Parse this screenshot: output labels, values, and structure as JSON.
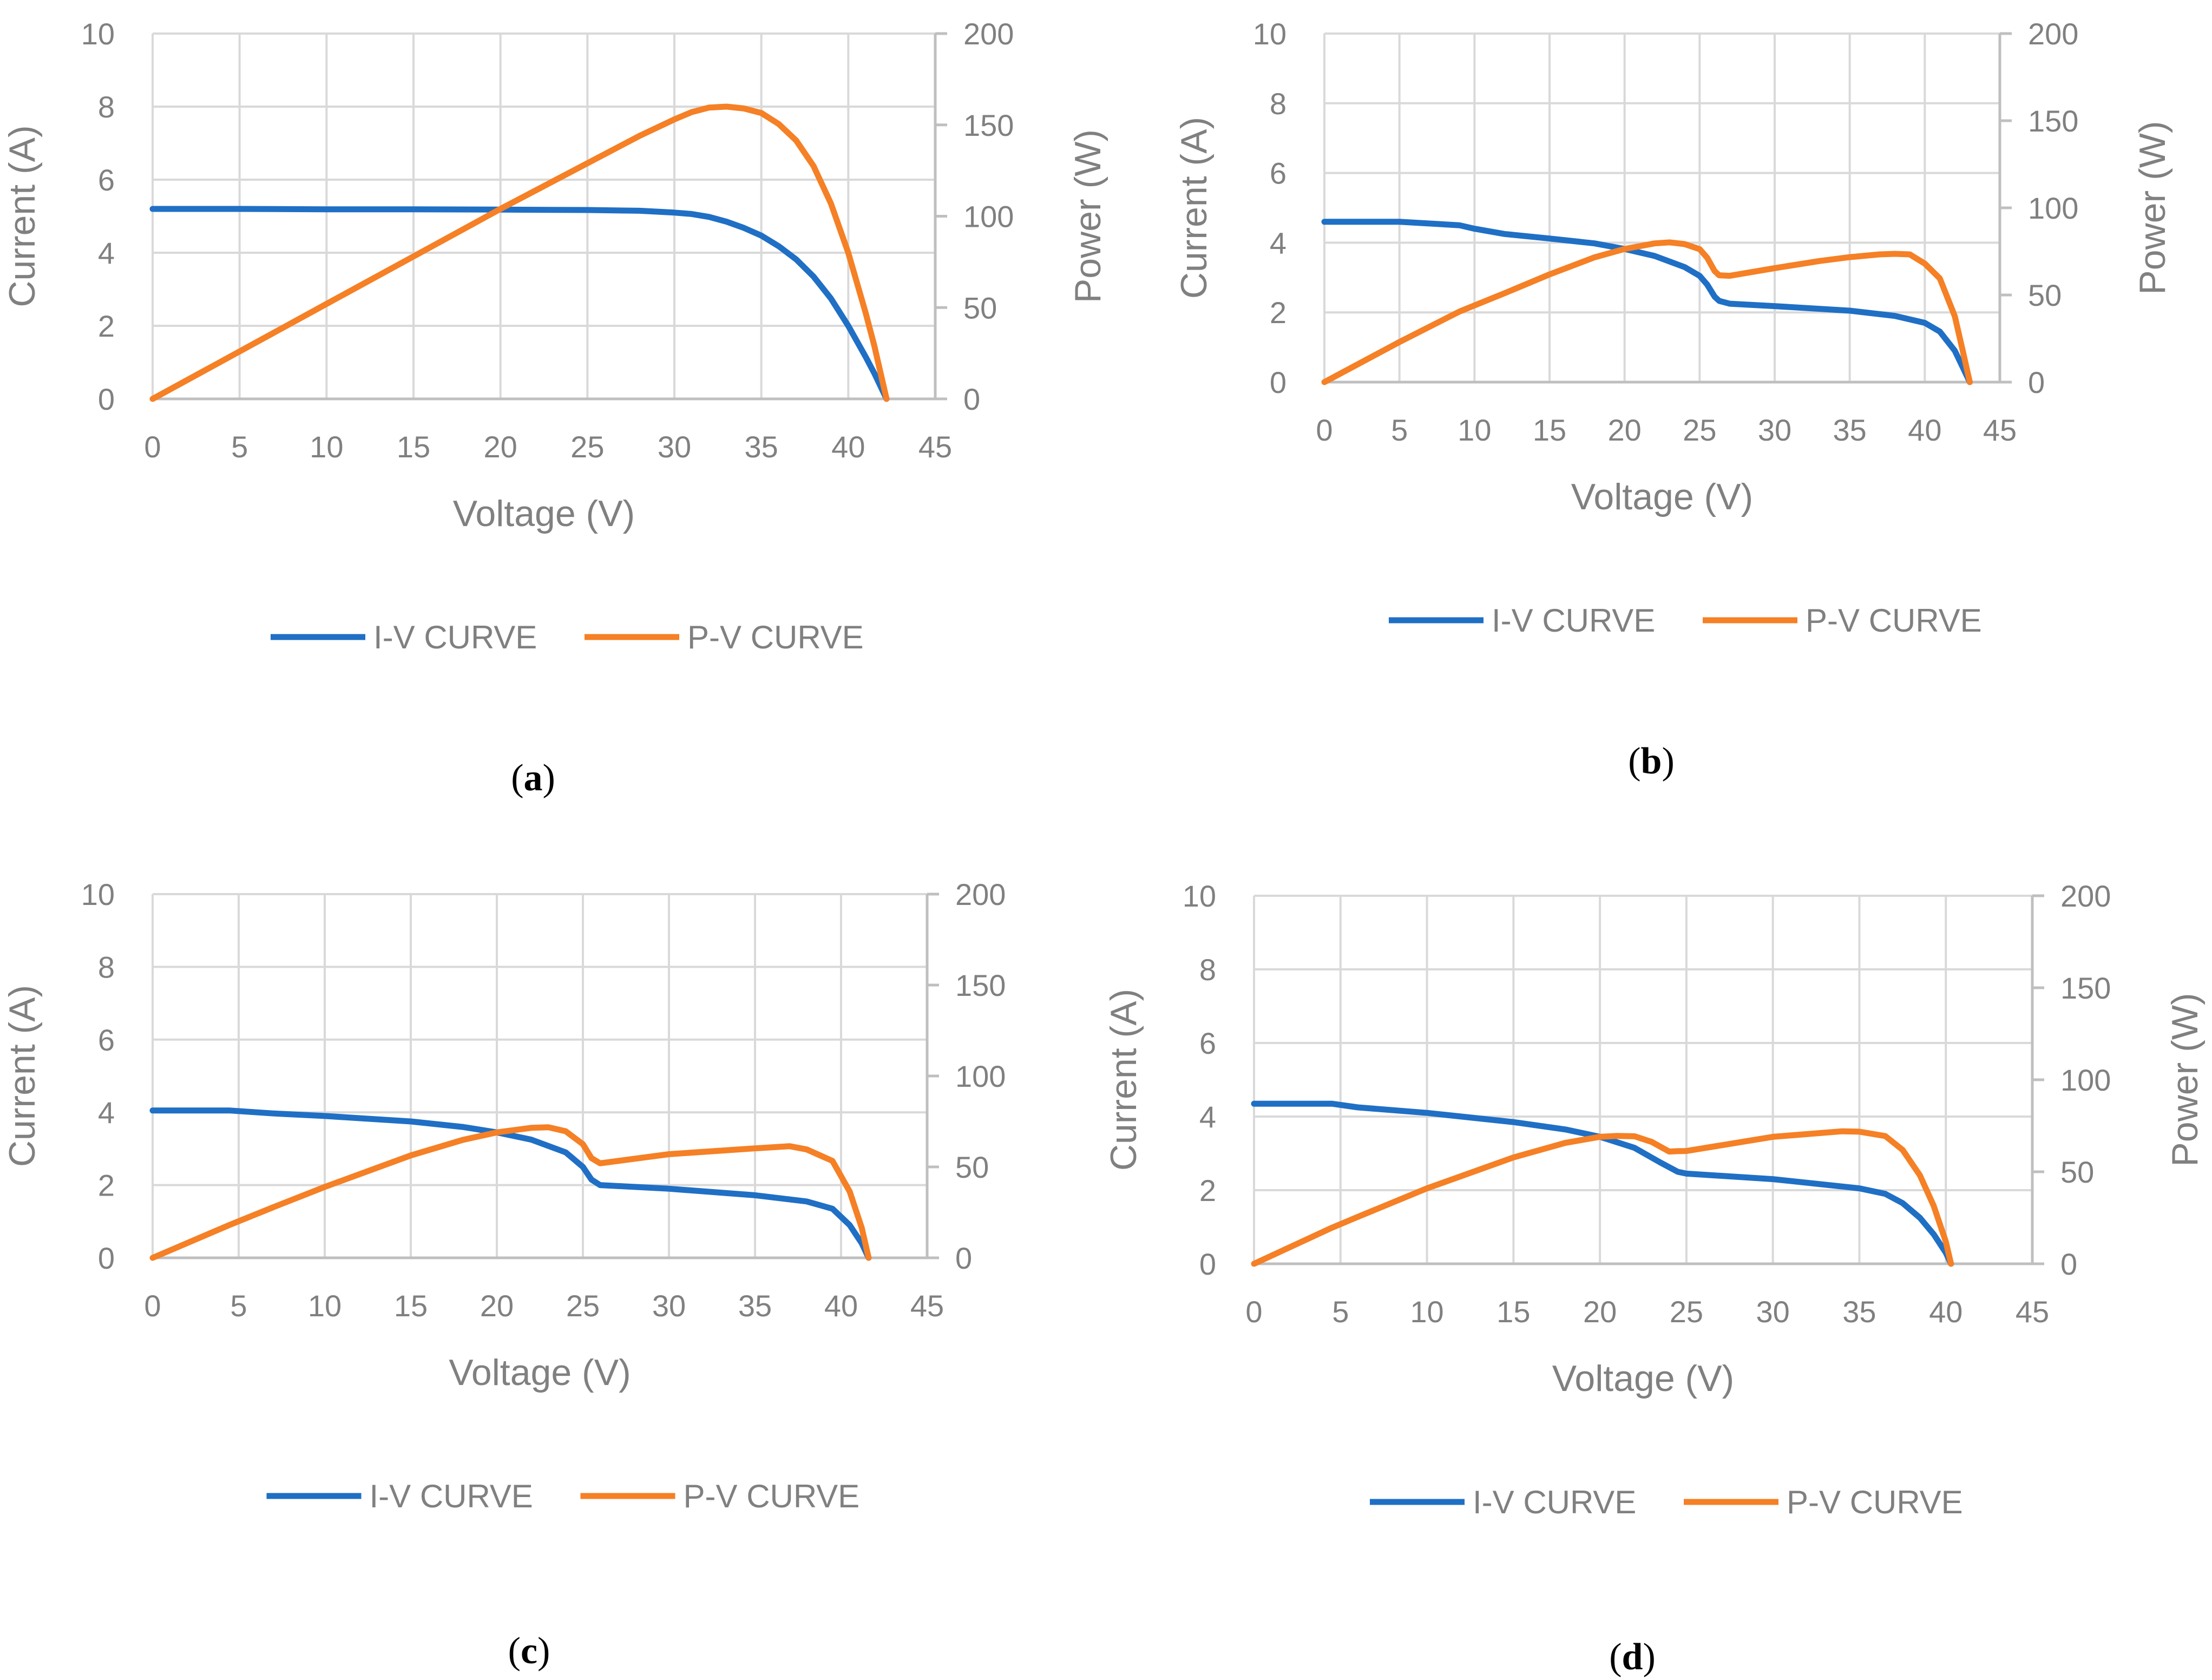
{
  "colors": {
    "iv": "#1F6FC5",
    "pv": "#F58025",
    "grid": "#D9D9D9",
    "axis": "#BFBFBF",
    "text": "#808080"
  },
  "chart_data": [
    {
      "type": "line",
      "caption": "a",
      "xlabel": "Voltage (V)",
      "ylabel": "Current (A)",
      "y2label": "Power (W)",
      "xlim": [
        0,
        45
      ],
      "ylim": [
        0,
        10
      ],
      "y2lim": [
        0,
        200
      ],
      "xticks": [
        0,
        5,
        10,
        15,
        20,
        25,
        30,
        35,
        40,
        45
      ],
      "yticks": [
        0,
        2,
        4,
        6,
        8,
        10
      ],
      "y2ticks": [
        0,
        50,
        100,
        150,
        200
      ],
      "grid": true,
      "legend": "bottom",
      "series": [
        {
          "name": "I-V CURVE",
          "axis": "left",
          "x": [
            0,
            5,
            10,
            15,
            20,
            25,
            28,
            30,
            31,
            32,
            33,
            34,
            35,
            36,
            37,
            38,
            39,
            40,
            41,
            41.5,
            42.2
          ],
          "y": [
            5.2,
            5.2,
            5.19,
            5.19,
            5.18,
            5.17,
            5.15,
            5.1,
            5.06,
            4.98,
            4.85,
            4.68,
            4.47,
            4.18,
            3.82,
            3.35,
            2.75,
            2.0,
            1.15,
            0.7,
            0
          ]
        },
        {
          "name": "P-V CURVE",
          "axis": "right",
          "x": [
            0,
            5,
            10,
            15,
            20,
            25,
            28,
            30,
            31,
            32,
            33,
            34,
            35,
            36,
            37,
            38,
            39,
            40,
            41,
            41.5,
            42.2
          ],
          "y": [
            0,
            26,
            52,
            78,
            104,
            129,
            144,
            153,
            157,
            159.5,
            160,
            159,
            156.5,
            150.5,
            141.5,
            127.5,
            107,
            80,
            47,
            29,
            0
          ]
        }
      ]
    },
    {
      "type": "line",
      "caption": "b",
      "xlabel": "Voltage (V)",
      "ylabel": "Current (A)",
      "y2label": "Power (W)",
      "xlim": [
        0,
        45
      ],
      "ylim": [
        0,
        10
      ],
      "y2lim": [
        0,
        200
      ],
      "xticks": [
        0,
        5,
        10,
        15,
        20,
        25,
        30,
        35,
        40,
        45
      ],
      "yticks": [
        0,
        2,
        4,
        6,
        8,
        10
      ],
      "y2ticks": [
        0,
        50,
        100,
        150,
        200
      ],
      "grid": true,
      "legend": "bottom",
      "series": [
        {
          "name": "I-V CURVE",
          "axis": "left",
          "x": [
            0,
            5,
            9,
            10,
            12,
            15,
            18,
            20,
            22,
            24,
            25,
            25.5,
            26,
            26.3,
            27,
            30,
            35,
            38,
            40,
            41,
            42,
            42.5,
            43
          ],
          "y": [
            4.6,
            4.6,
            4.5,
            4.4,
            4.25,
            4.12,
            3.98,
            3.82,
            3.62,
            3.3,
            3.05,
            2.8,
            2.45,
            2.33,
            2.25,
            2.18,
            2.05,
            1.9,
            1.7,
            1.45,
            0.9,
            0.45,
            0
          ]
        },
        {
          "name": "P-V CURVE",
          "axis": "right",
          "x": [
            0,
            5,
            9,
            10,
            12,
            15,
            18,
            20,
            22,
            23,
            24,
            25,
            25.5,
            26,
            26.3,
            27,
            30,
            33,
            35,
            37,
            38,
            39,
            40,
            41,
            42,
            42.5,
            43
          ],
          "y": [
            0,
            23,
            40.5,
            44,
            51,
            61.8,
            71.6,
            76.4,
            79.6,
            80.2,
            79.2,
            76.3,
            71.4,
            63.7,
            61.3,
            61,
            65.4,
            69.5,
            71.7,
            73.3,
            73.6,
            73.3,
            68,
            59.5,
            37.8,
            19,
            0
          ]
        }
      ]
    },
    {
      "type": "line",
      "caption": "c",
      "xlabel": "Voltage (V)",
      "ylabel": "Current (A)",
      "y2label": "",
      "xlim": [
        0,
        45
      ],
      "ylim": [
        0,
        10
      ],
      "y2lim": [
        0,
        200
      ],
      "xticks": [
        0,
        5,
        10,
        15,
        20,
        25,
        30,
        35,
        40,
        45
      ],
      "yticks": [
        0,
        2,
        4,
        6,
        8,
        10
      ],
      "y2ticks": [
        0,
        50,
        100,
        150,
        200
      ],
      "grid": true,
      "legend": "bottom",
      "series": [
        {
          "name": "I-V CURVE",
          "axis": "left",
          "x": [
            0,
            4.5,
            7,
            10,
            15,
            18,
            20,
            22,
            24,
            25,
            25.5,
            26,
            30,
            35,
            38,
            39.5,
            40.5,
            41.2,
            41.6
          ],
          "y": [
            4.05,
            4.05,
            3.97,
            3.9,
            3.75,
            3.6,
            3.45,
            3.25,
            2.9,
            2.5,
            2.15,
            2.0,
            1.9,
            1.72,
            1.55,
            1.35,
            0.9,
            0.4,
            0
          ]
        },
        {
          "name": "P-V CURVE",
          "axis": "right",
          "x": [
            0,
            4.5,
            7,
            10,
            15,
            18,
            20,
            22,
            23,
            24,
            25,
            25.5,
            26,
            30,
            35,
            37,
            38,
            39.5,
            40.5,
            41.2,
            41.6
          ],
          "y": [
            0,
            18.2,
            27.8,
            39,
            56.3,
            64.8,
            69,
            71.5,
            71.8,
            69.6,
            62.5,
            54.8,
            52,
            57,
            60.2,
            61.4,
            59.6,
            53.3,
            36.5,
            16.5,
            0
          ]
        }
      ]
    },
    {
      "type": "line",
      "caption": "d",
      "xlabel": "Voltage (V)",
      "ylabel": "Current (A)",
      "y2label": "Power (W)",
      "xlim": [
        0,
        45
      ],
      "ylim": [
        0,
        10
      ],
      "y2lim": [
        0,
        200
      ],
      "xticks": [
        0,
        5,
        10,
        15,
        20,
        25,
        30,
        35,
        40,
        45
      ],
      "yticks": [
        0,
        2,
        4,
        6,
        8,
        10
      ],
      "y2ticks": [
        0,
        50,
        100,
        150,
        200
      ],
      "grid": true,
      "legend": "bottom",
      "series": [
        {
          "name": "I-V CURVE",
          "axis": "left",
          "x": [
            0,
            4.5,
            6,
            10,
            15,
            18,
            20,
            22,
            23.5,
            24.5,
            25,
            30,
            35,
            36.5,
            37.5,
            38.5,
            39.3,
            40,
            40.3
          ],
          "y": [
            4.35,
            4.35,
            4.25,
            4.1,
            3.85,
            3.65,
            3.45,
            3.15,
            2.75,
            2.5,
            2.45,
            2.3,
            2.05,
            1.9,
            1.65,
            1.25,
            0.8,
            0.3,
            0
          ]
        },
        {
          "name": "P-V CURVE",
          "axis": "right",
          "x": [
            0,
            4.5,
            6,
            10,
            15,
            18,
            20,
            21,
            22,
            23,
            24,
            24.5,
            25,
            30,
            34,
            35,
            36.5,
            37.5,
            38.5,
            39.3,
            40,
            40.3
          ],
          "y": [
            0,
            19.6,
            25.5,
            41,
            57.8,
            65.7,
            69,
            69.5,
            69.3,
            66.2,
            61,
            61.2,
            61.3,
            69,
            72,
            71.8,
            69.4,
            61.9,
            48.1,
            31.4,
            12,
            0
          ]
        }
      ]
    }
  ]
}
